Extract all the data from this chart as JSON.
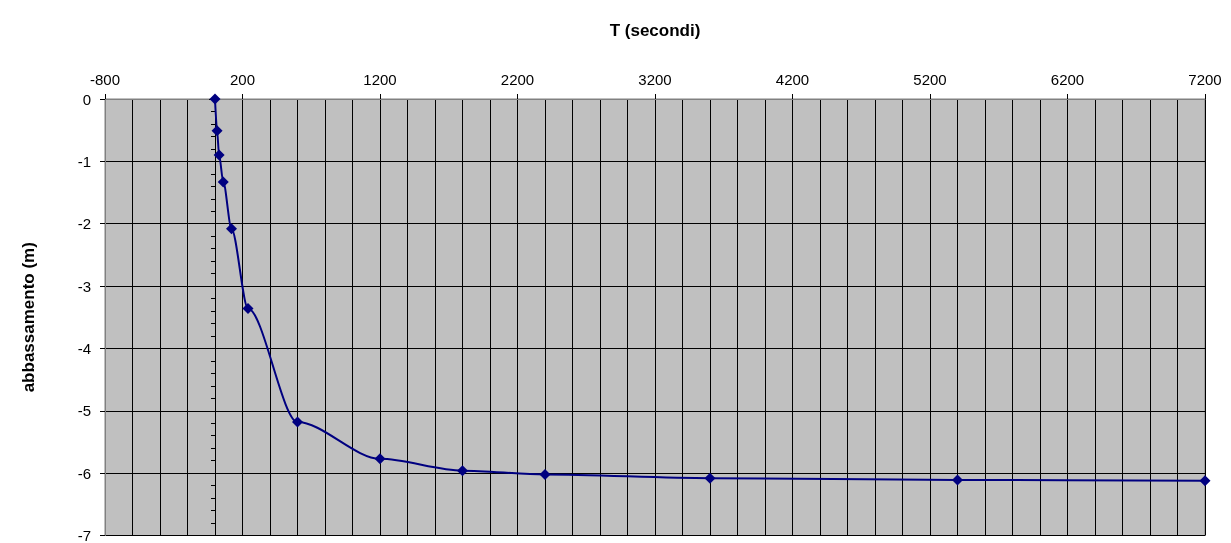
{
  "chart_data": {
    "type": "line",
    "xlabel": "T (secondi)",
    "ylabel": "abbassamento (m)",
    "series": [
      {
        "color": "#000080",
        "x": [
          0,
          15,
          30,
          60,
          120,
          240,
          600,
          1200,
          1800,
          2400,
          3600,
          5400,
          7200
        ],
        "values": [
          0,
          -0.51,
          -0.9,
          -1.33,
          -2.08,
          -3.36,
          -5.18,
          -5.77,
          -5.96,
          -6.02,
          -6.08,
          -6.11,
          -6.12
        ]
      }
    ],
    "xlim": [
      -800,
      7200
    ],
    "xticks": [
      -800,
      200,
      1200,
      2200,
      3200,
      4200,
      5200,
      6200,
      7200
    ],
    "ylim": [
      -7,
      0
    ],
    "yticks": [
      -7,
      -6,
      -5,
      -4,
      -3,
      -2,
      -1,
      0
    ],
    "grid": true,
    "marker": "diamond",
    "line_style": "solid"
  }
}
